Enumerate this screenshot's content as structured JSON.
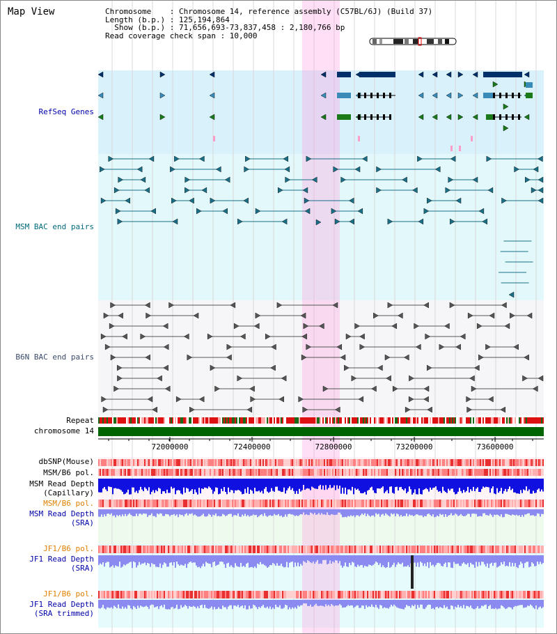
{
  "title": "Map View",
  "info": {
    "line1": "Chromosome    : Chromosome 14, reference assembly (C57BL/6J) (Build 37)",
    "line2": "Length (b.p.) : 125,194,864",
    "line3": "  Show (b.p.) : 71,656,693-73,837,458 : 2,180,766 bp",
    "line4": "Read coverage check span : 10,000"
  },
  "tracks": {
    "refseq": "RefSeq Genes",
    "msm_bac": "MSM BAC end pairs",
    "b6n_bac": "B6N BAC end pairs",
    "repeat": "Repeat",
    "chromosome": "chromosome 14",
    "dbsnp": "dbSNP(Mouse)",
    "msm_b6_pol_1": "MSM/B6 pol.",
    "msm_depth_cap_1": "MSM Read Depth",
    "msm_depth_cap_2": "(Capillary)",
    "msm_b6_pol_2": "MSM/B6 pol.",
    "msm_depth_sra_1": "MSM Read Depth",
    "msm_depth_sra_2": "(SRA)",
    "jf1_b6_pol_1": "JF1/B6 pol.",
    "jf1_depth_sra_1": "JF1 Read Depth",
    "jf1_depth_sra_2": "(SRA)",
    "jf1_b6_pol_2": "JF1/B6 pol.",
    "jf1_depth_trim_1": "JF1 Read Depth",
    "jf1_depth_trim_2": "(SRA trimmed)"
  },
  "axis": {
    "ticks": [
      "72000000",
      "72400000",
      "72800000",
      "73200000",
      "73600000"
    ]
  },
  "colors": {
    "refseq_label": "#0000aa",
    "msm_label": "#006a7a",
    "b6n_label": "#3a4a6a",
    "pol_orange": "#e08000",
    "depth_blue": "#0000aa",
    "highlight": "#ffd6f0"
  }
}
